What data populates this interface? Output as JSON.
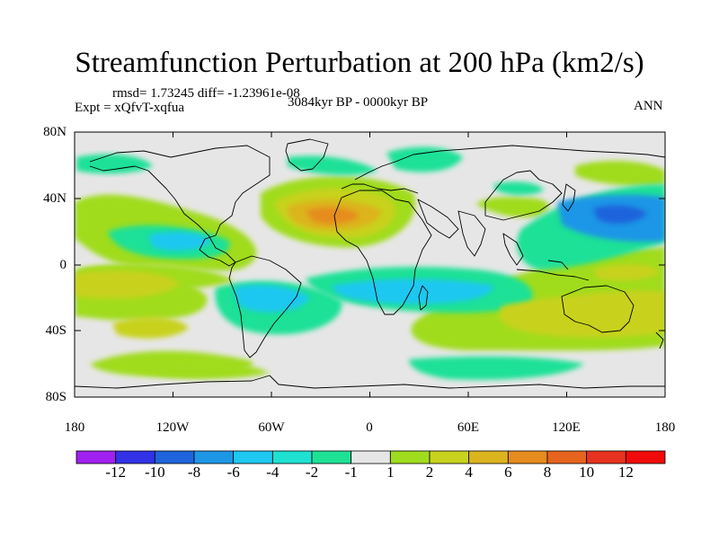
{
  "title": "Streamfunction Perturbation at 200 hPa (km2/s)",
  "stats": "rmsd= 1.73245 diff= -1.23961e-08",
  "experiment": "Expt = xQfvT-xqfua",
  "period": "3084kyr BP - 0000kyr BP",
  "season": "ANN",
  "lat_labels": [
    "80N",
    "40N",
    "0",
    "40S",
    "80S"
  ],
  "lon_labels": [
    "180",
    "120W",
    "60W",
    "0",
    "60E",
    "120E",
    "180"
  ],
  "colorbar": {
    "labels": [
      "-12",
      "-10",
      "-8",
      "-6",
      "-4",
      "-2",
      "-1",
      "1",
      "2",
      "4",
      "6",
      "8",
      "10",
      "12"
    ],
    "colors": [
      "#a020f0",
      "#3232e6",
      "#1e64dc",
      "#1e96e6",
      "#1ec8f0",
      "#1ee1d2",
      "#1ee196",
      "#e6e6e6",
      "#a0dc1e",
      "#c8d21e",
      "#dcb41e",
      "#e68c1e",
      "#e6641e",
      "#e6321e",
      "#f00a0a"
    ]
  }
}
